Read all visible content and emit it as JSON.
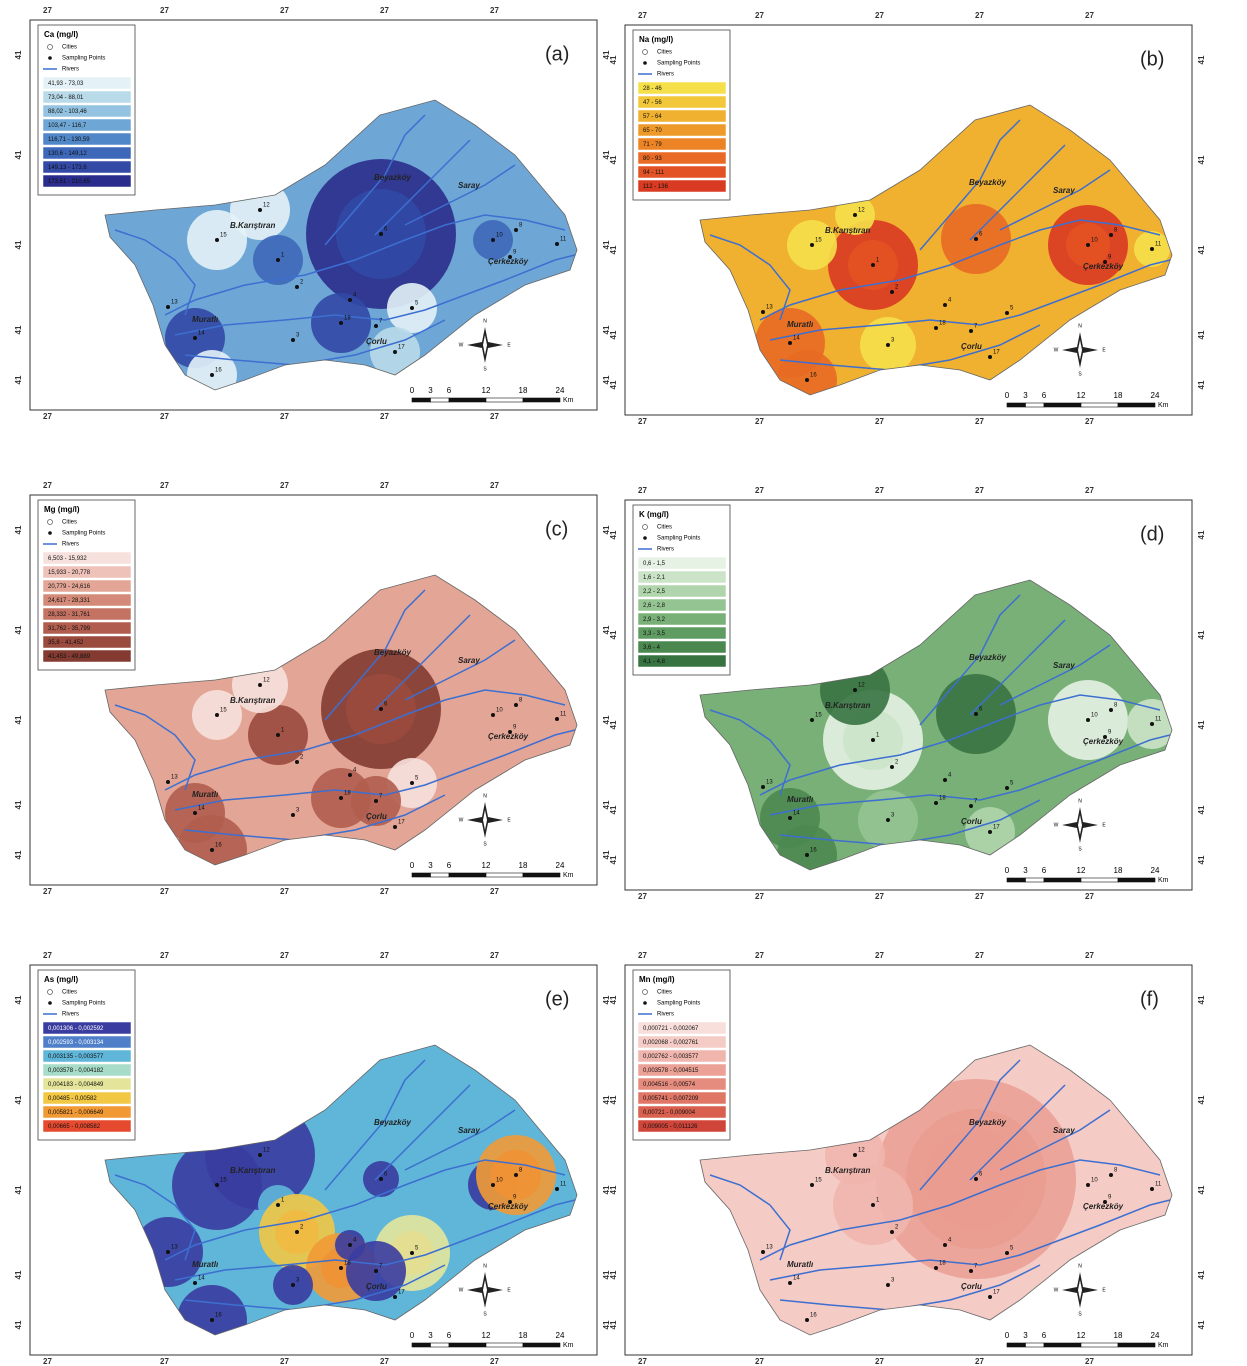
{
  "panels": [
    {
      "label": "(a)",
      "legend_title": "Ca (mg/l)",
      "classes": [
        "41,93 - 73,03",
        "73,04 - 88,01",
        "88,02 - 103,46",
        "103,47 - 116,7",
        "116,71 - 130,59",
        "130,6 - 149,12",
        "149,13 - 173,6",
        "173,61 - 210,65"
      ],
      "colors": [
        "#e4f2f7",
        "#b9dbe9",
        "#93c3e0",
        "#6ea7d6",
        "#5087c9",
        "#3d68b9",
        "#3249a6",
        "#2a2d8c"
      ]
    },
    {
      "label": "(b)",
      "legend_title": "Na (mg/l)",
      "classes": [
        "28 - 46",
        "47 - 56",
        "57 - 64",
        "65 - 70",
        "71 - 79",
        "80 - 93",
        "94 - 111",
        "112 - 136"
      ],
      "colors": [
        "#f5e04a",
        "#f2c83a",
        "#f0b030",
        "#ee9a2a",
        "#ec8426",
        "#e86a25",
        "#e35224",
        "#d83a22"
      ]
    },
    {
      "label": "(c)",
      "legend_title": "Mg (mg/l)",
      "classes": [
        "6,503 - 15,932",
        "15,933 - 20,778",
        "20,779 - 24,616",
        "24,617 - 28,331",
        "28,332 - 31,761",
        "31,762 - 35,799",
        "35,8 - 41,452",
        "41,453 - 49,889"
      ],
      "colors": [
        "#f7e1dc",
        "#eec2b9",
        "#e2a596",
        "#d48a79",
        "#c47262",
        "#b05d4f",
        "#9b4a3e",
        "#833b31"
      ]
    },
    {
      "label": "(d)",
      "legend_title": "K (mg/l)",
      "classes": [
        "0,6 - 1,5",
        "1,6 - 2,1",
        "2,2 - 2,5",
        "2,6 - 2,8",
        "2,9 - 3,2",
        "3,3 - 3,5",
        "3,6 - 4",
        "4,1 - 4,8"
      ],
      "colors": [
        "#e6f2e4",
        "#cbe4c8",
        "#b0d5ac",
        "#94c491",
        "#78b077",
        "#5f9c62",
        "#4b8850",
        "#377341"
      ]
    },
    {
      "label": "(e)",
      "legend_title": "As (mg/l)",
      "classes": [
        "0,001306 - 0,002592",
        "0,002593 - 0,003134",
        "0,003135 - 0,003577",
        "0,003578 - 0,004182",
        "0,004183 - 0,004849",
        "0,00485 - 0,00582",
        "0,005821 - 0,006649",
        "0,00665 - 0,008582"
      ],
      "colors": [
        "#3a3ca0",
        "#4f7fc8",
        "#5fb6d9",
        "#a6dcc8",
        "#e4e59a",
        "#f2c744",
        "#f19a35",
        "#e54a2f"
      ]
    },
    {
      "label": "(f)",
      "legend_title": "Mn (mg/l)",
      "classes": [
        "0,000721 - 0,002067",
        "0,002068 - 0,002761",
        "0,002762 - 0,003577",
        "0,003578 - 0,004515",
        "0,004516 - 0,00574",
        "0,005741 - 0,007209",
        "0,00721 - 0,009004",
        "0,009005 - 0,011126"
      ],
      "colors": [
        "#f8dfdc",
        "#f4cbc5",
        "#f0b6ad",
        "#eba195",
        "#e68c7e",
        "#e07666",
        "#d95f4f",
        "#d0453a"
      ]
    }
  ],
  "legend": {
    "cities": "Cities",
    "sampling_points": "Sampling Points",
    "rivers": "Rivers"
  },
  "places": [
    "Beyazköy",
    "Saray",
    "B.Karıştıran",
    "Çerkezköy",
    "Muratlı",
    "Çorlu"
  ],
  "sampling_points": [
    "1",
    "2",
    "3",
    "4",
    "5",
    "6",
    "7",
    "8",
    "9",
    "10",
    "11",
    "12",
    "13",
    "14",
    "15",
    "16",
    "17",
    "18"
  ],
  "scale_bar": {
    "ticks": [
      "0",
      "3",
      "6",
      "12",
      "18",
      "24"
    ],
    "unit": "Km"
  },
  "compass": [
    "N",
    "E",
    "S",
    "W"
  ],
  "axis_labels": {
    "longitude": "27",
    "latitude": "41"
  }
}
